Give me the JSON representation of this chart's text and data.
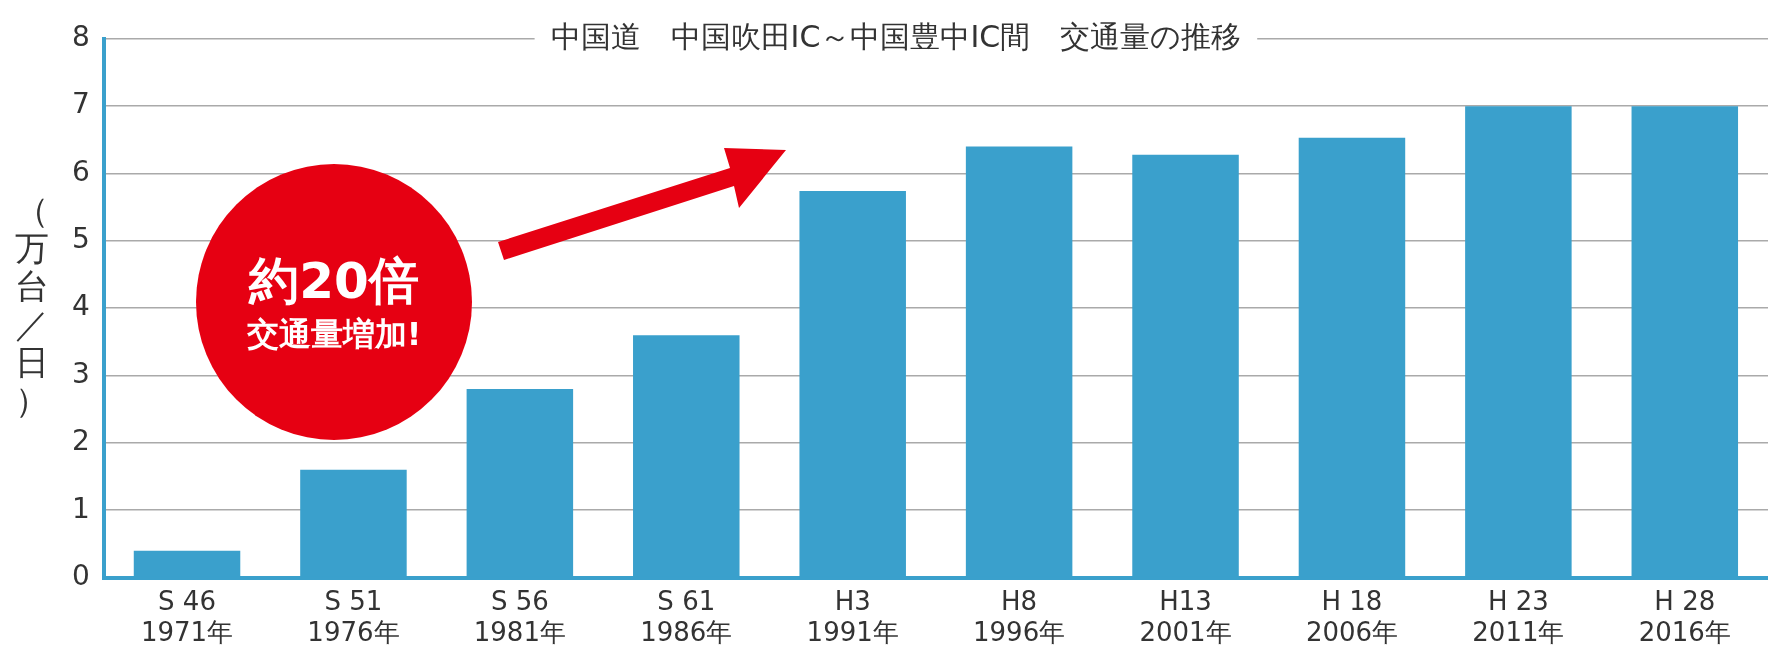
{
  "chart_data": {
    "type": "bar",
    "title": "中国道　中国吹田IC～中国豊中IC間　交通量の推移",
    "ylabel": "（万台／日）",
    "categories": [
      "S 46\n1971年",
      "S 51\n1976年",
      "S 56\n1981年",
      "S 61\n1986年",
      "H3\n1991年",
      "H8\n1996年",
      "H13\n2001年",
      "H 18\n2006年",
      "H 23\n2011年",
      "H 28\n2016年"
    ],
    "values": [
      0.4,
      1.6,
      2.8,
      3.6,
      5.74,
      6.4,
      6.28,
      6.53,
      7.0,
      7.0
    ],
    "color": "#3aa0cc",
    "ylim": [
      0,
      8
    ],
    "yticks": [
      0,
      1,
      2,
      3,
      4,
      5,
      6,
      7,
      8
    ],
    "grid": "y",
    "annotations": [
      "約20倍",
      "交通量増加!"
    ]
  }
}
